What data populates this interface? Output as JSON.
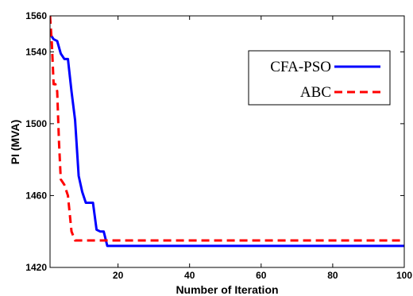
{
  "chart_data": {
    "type": "line",
    "title": "",
    "xlabel": "Number of Iteration",
    "ylabel": "PI (MVA)",
    "xlim": [
      1,
      100
    ],
    "ylim": [
      1420,
      1560
    ],
    "x_ticks": [
      20,
      40,
      60,
      80,
      100
    ],
    "x_tick_labels": [
      "20",
      "40",
      "60",
      "80",
      "100"
    ],
    "y_ticks": [
      1420,
      1460,
      1500,
      1540,
      1560
    ],
    "y_tick_labels": [
      "1420",
      "1460",
      "1500",
      "1540",
      "1560"
    ],
    "grid": false,
    "legend_position": "top-right",
    "series": [
      {
        "name": "CFA-PSO",
        "color": "#0000ff",
        "line_style": "solid",
        "x": [
          1,
          2,
          3,
          4,
          5,
          6,
          7,
          8,
          9,
          10,
          11,
          12,
          13,
          14,
          15,
          16,
          17,
          18,
          100
        ],
        "y": [
          1550,
          1547,
          1546,
          1539,
          1536,
          1536,
          1518,
          1502,
          1471,
          1462,
          1456,
          1456,
          1456,
          1441,
          1440,
          1440,
          1432,
          1432,
          1432
        ]
      },
      {
        "name": "ABC",
        "color": "#ff0000",
        "line_style": "dashed",
        "x": [
          1,
          1.5,
          2,
          2.5,
          3,
          3.5,
          4,
          5,
          6,
          7,
          8,
          9,
          100
        ],
        "y": [
          1560,
          1545,
          1522,
          1522,
          1518,
          1490,
          1469,
          1466,
          1460,
          1440,
          1435,
          1435,
          1435
        ]
      }
    ]
  }
}
